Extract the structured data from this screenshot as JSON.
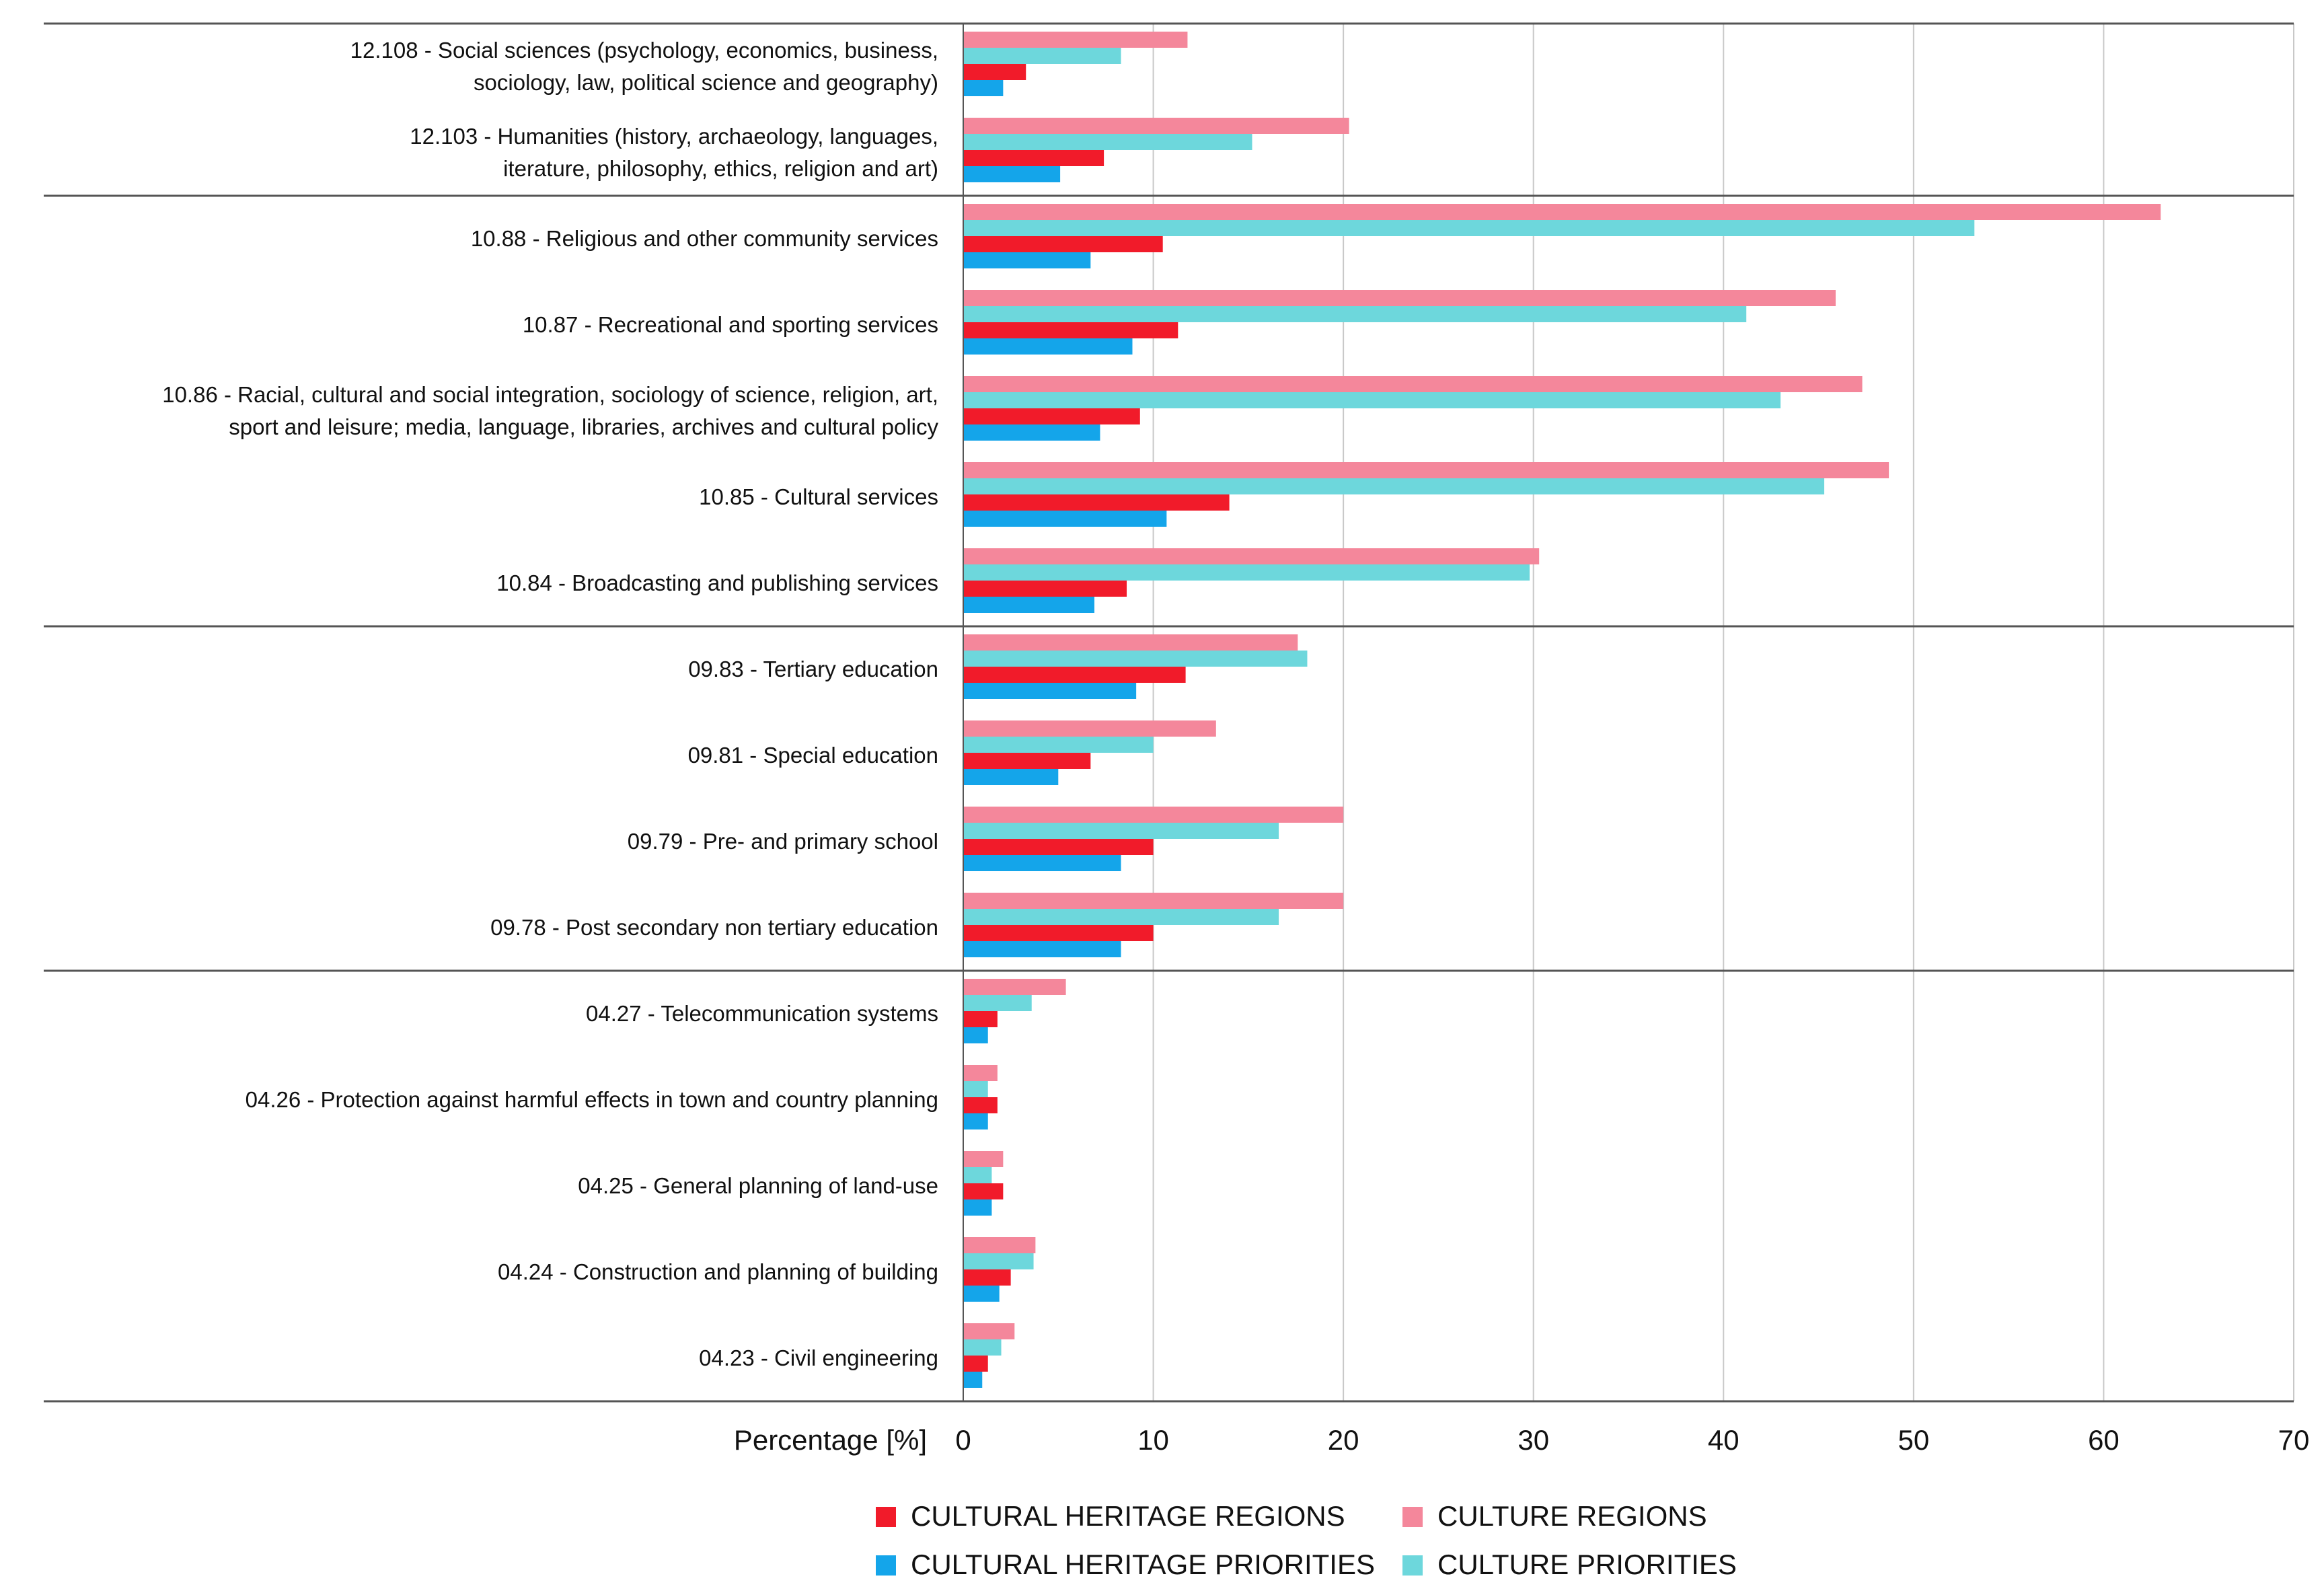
{
  "chart_data": {
    "type": "bar",
    "orientation": "horizontal",
    "title": "",
    "xlabel": "Percentage [%]",
    "ylabel": "",
    "xlim": [
      0,
      70
    ],
    "xticks": [
      0,
      10,
      20,
      30,
      40,
      50,
      60,
      70
    ],
    "grid": true,
    "legend_position": "bottom",
    "categories": [
      {
        "lines": [
          "12.108 - Social sciences (psychology, economics, business,",
          "sociology, law, political science and geography)"
        ]
      },
      {
        "lines": [
          "12.103 - Humanities (history, archaeology, languages,",
          "iterature, philosophy, ethics, religion and art)"
        ]
      },
      {
        "lines": [
          "10.88 - Religious and other community services"
        ]
      },
      {
        "lines": [
          "10.87 - Recreational and sporting services"
        ]
      },
      {
        "lines": [
          "10.86 - Racial, cultural and social integration, sociology of science, religion, art,",
          "sport and leisure; media, language, libraries, archives and cultural policy"
        ]
      },
      {
        "lines": [
          "10.85 - Cultural services"
        ]
      },
      {
        "lines": [
          "10.84 - Broadcasting and publishing services"
        ]
      },
      {
        "lines": [
          "09.83 - Tertiary education"
        ]
      },
      {
        "lines": [
          "09.81 - Special education"
        ]
      },
      {
        "lines": [
          "09.79 - Pre- and primary school"
        ]
      },
      {
        "lines": [
          "09.78 - Post secondary non tertiary education"
        ]
      },
      {
        "lines": [
          "04.27 - Telecommunication systems"
        ]
      },
      {
        "lines": [
          "04.26 - Protection against harmful effects in town and country planning"
        ]
      },
      {
        "lines": [
          "04.25 - General planning of land-use"
        ]
      },
      {
        "lines": [
          "04.24 - Construction and planning of building"
        ]
      },
      {
        "lines": [
          "04.23 - Civil engineering"
        ]
      }
    ],
    "group_separators_after_index": [
      1,
      6,
      10
    ],
    "series": [
      {
        "name": "CULTURE REGIONS",
        "color": "#f4879b",
        "values": [
          11.8,
          20.3,
          63.0,
          45.9,
          47.3,
          48.7,
          30.3,
          17.6,
          13.3,
          20.0,
          20.0,
          5.4,
          1.8,
          2.1,
          3.8,
          2.7
        ]
      },
      {
        "name": "CULTURE PRIORITIES",
        "color": "#6dd7dc",
        "values": [
          8.3,
          15.2,
          53.2,
          41.2,
          43.0,
          45.3,
          29.8,
          18.1,
          10.0,
          16.6,
          16.6,
          3.6,
          1.3,
          1.5,
          3.7,
          2.0
        ]
      },
      {
        "name": "CULTURAL HERITAGE REGIONS",
        "color": "#f11b2a",
        "values": [
          3.3,
          7.4,
          10.5,
          11.3,
          9.3,
          14.0,
          8.6,
          11.7,
          6.7,
          10.0,
          10.0,
          1.8,
          1.8,
          2.1,
          2.5,
          1.3
        ]
      },
      {
        "name": "CULTURAL HERITAGE PRIORITIES",
        "color": "#14a5ea",
        "values": [
          2.1,
          5.1,
          6.7,
          8.9,
          7.2,
          10.7,
          6.9,
          9.1,
          5.0,
          8.3,
          8.3,
          1.3,
          1.3,
          1.5,
          1.9,
          1.0
        ]
      }
    ]
  },
  "legend": {
    "items": [
      {
        "label": "CULTURAL HERITAGE REGIONS",
        "color": "#f11b2a"
      },
      {
        "label": "CULTURE REGIONS",
        "color": "#f4879b"
      },
      {
        "label": "CULTURAL HERITAGE PRIORITIES",
        "color": "#14a5ea"
      },
      {
        "label": "CULTURE PRIORITIES",
        "color": "#6dd7dc"
      }
    ]
  }
}
